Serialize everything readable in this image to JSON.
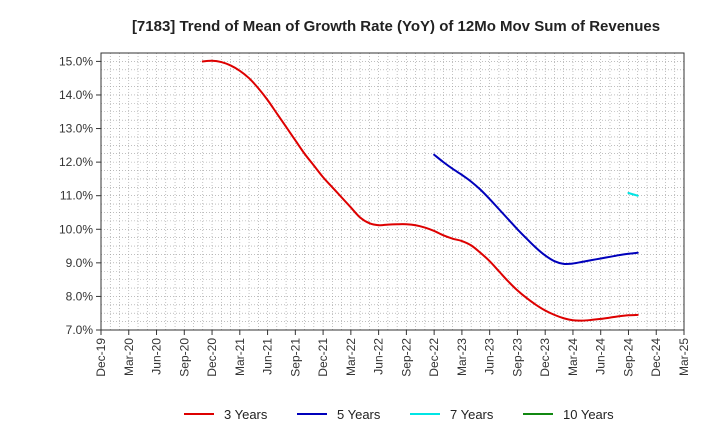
{
  "chart_data": {
    "type": "line",
    "title": "[7183]  Trend of Mean of Growth Rate (YoY) of 12Mo Mov Sum of Revenues",
    "xlabel": "",
    "ylabel": "",
    "ylim": [
      7.0,
      15.25
    ],
    "y_ticks": [
      7.0,
      8.0,
      9.0,
      10.0,
      11.0,
      12.0,
      13.0,
      14.0,
      15.0
    ],
    "y_tick_labels": [
      "7.0%",
      "8.0%",
      "9.0%",
      "10.0%",
      "11.0%",
      "12.0%",
      "13.0%",
      "14.0%",
      "15.0%"
    ],
    "x_tick_labels": [
      "Dec-19",
      "Mar-20",
      "Jun-20",
      "Sep-20",
      "Dec-20",
      "Mar-21",
      "Jun-21",
      "Sep-21",
      "Dec-21",
      "Mar-22",
      "Jun-22",
      "Sep-22",
      "Dec-22",
      "Mar-23",
      "Jun-23",
      "Sep-23",
      "Dec-23",
      "Mar-24",
      "Jun-24",
      "Sep-24",
      "Dec-24",
      "Mar-25"
    ],
    "x_index_note": "x values are month offsets from Dec-19 (0 = Dec-19, 3 = Mar-20, ... 63 = Mar-25)",
    "grid": true,
    "legend_position": "bottom",
    "series": [
      {
        "name": "3 Years",
        "color": "#dd0000",
        "points": [
          [
            11,
            15.0
          ],
          [
            12,
            15.02
          ],
          [
            13,
            14.98
          ],
          [
            14,
            14.88
          ],
          [
            15,
            14.72
          ],
          [
            16,
            14.5
          ],
          [
            17,
            14.2
          ],
          [
            18,
            13.85
          ],
          [
            19,
            13.45
          ],
          [
            20,
            13.05
          ],
          [
            21,
            12.65
          ],
          [
            22,
            12.25
          ],
          [
            23,
            11.9
          ],
          [
            24,
            11.55
          ],
          [
            25,
            11.25
          ],
          [
            26,
            10.95
          ],
          [
            27,
            10.65
          ],
          [
            28,
            10.35
          ],
          [
            29,
            10.18
          ],
          [
            30,
            10.12
          ],
          [
            31,
            10.14
          ],
          [
            32,
            10.15
          ],
          [
            33,
            10.15
          ],
          [
            34,
            10.12
          ],
          [
            35,
            10.05
          ],
          [
            36,
            9.95
          ],
          [
            37,
            9.82
          ],
          [
            38,
            9.72
          ],
          [
            39,
            9.65
          ],
          [
            40,
            9.52
          ],
          [
            41,
            9.3
          ],
          [
            42,
            9.05
          ],
          [
            43,
            8.75
          ],
          [
            44,
            8.45
          ],
          [
            45,
            8.18
          ],
          [
            46,
            7.95
          ],
          [
            47,
            7.75
          ],
          [
            48,
            7.58
          ],
          [
            49,
            7.45
          ],
          [
            50,
            7.35
          ],
          [
            51,
            7.29
          ],
          [
            52,
            7.28
          ],
          [
            53,
            7.3
          ],
          [
            54,
            7.33
          ],
          [
            55,
            7.37
          ],
          [
            56,
            7.41
          ],
          [
            57,
            7.44
          ],
          [
            58,
            7.45
          ]
        ]
      },
      {
        "name": "5 Years",
        "color": "#0000bb",
        "points": [
          [
            36,
            12.22
          ],
          [
            37,
            12.0
          ],
          [
            38,
            11.8
          ],
          [
            39,
            11.62
          ],
          [
            40,
            11.42
          ],
          [
            41,
            11.18
          ],
          [
            42,
            10.9
          ],
          [
            43,
            10.6
          ],
          [
            44,
            10.3
          ],
          [
            45,
            10.0
          ],
          [
            46,
            9.72
          ],
          [
            47,
            9.45
          ],
          [
            48,
            9.22
          ],
          [
            49,
            9.05
          ],
          [
            50,
            8.97
          ],
          [
            51,
            8.98
          ],
          [
            52,
            9.03
          ],
          [
            53,
            9.08
          ],
          [
            54,
            9.13
          ],
          [
            55,
            9.18
          ],
          [
            56,
            9.23
          ],
          [
            57,
            9.27
          ],
          [
            58,
            9.3
          ]
        ]
      },
      {
        "name": "7 Years",
        "color": "#00e5e5",
        "points": [
          [
            57,
            11.08
          ],
          [
            58,
            11.0
          ]
        ]
      },
      {
        "name": "10 Years",
        "color": "#118811",
        "points": []
      }
    ]
  }
}
